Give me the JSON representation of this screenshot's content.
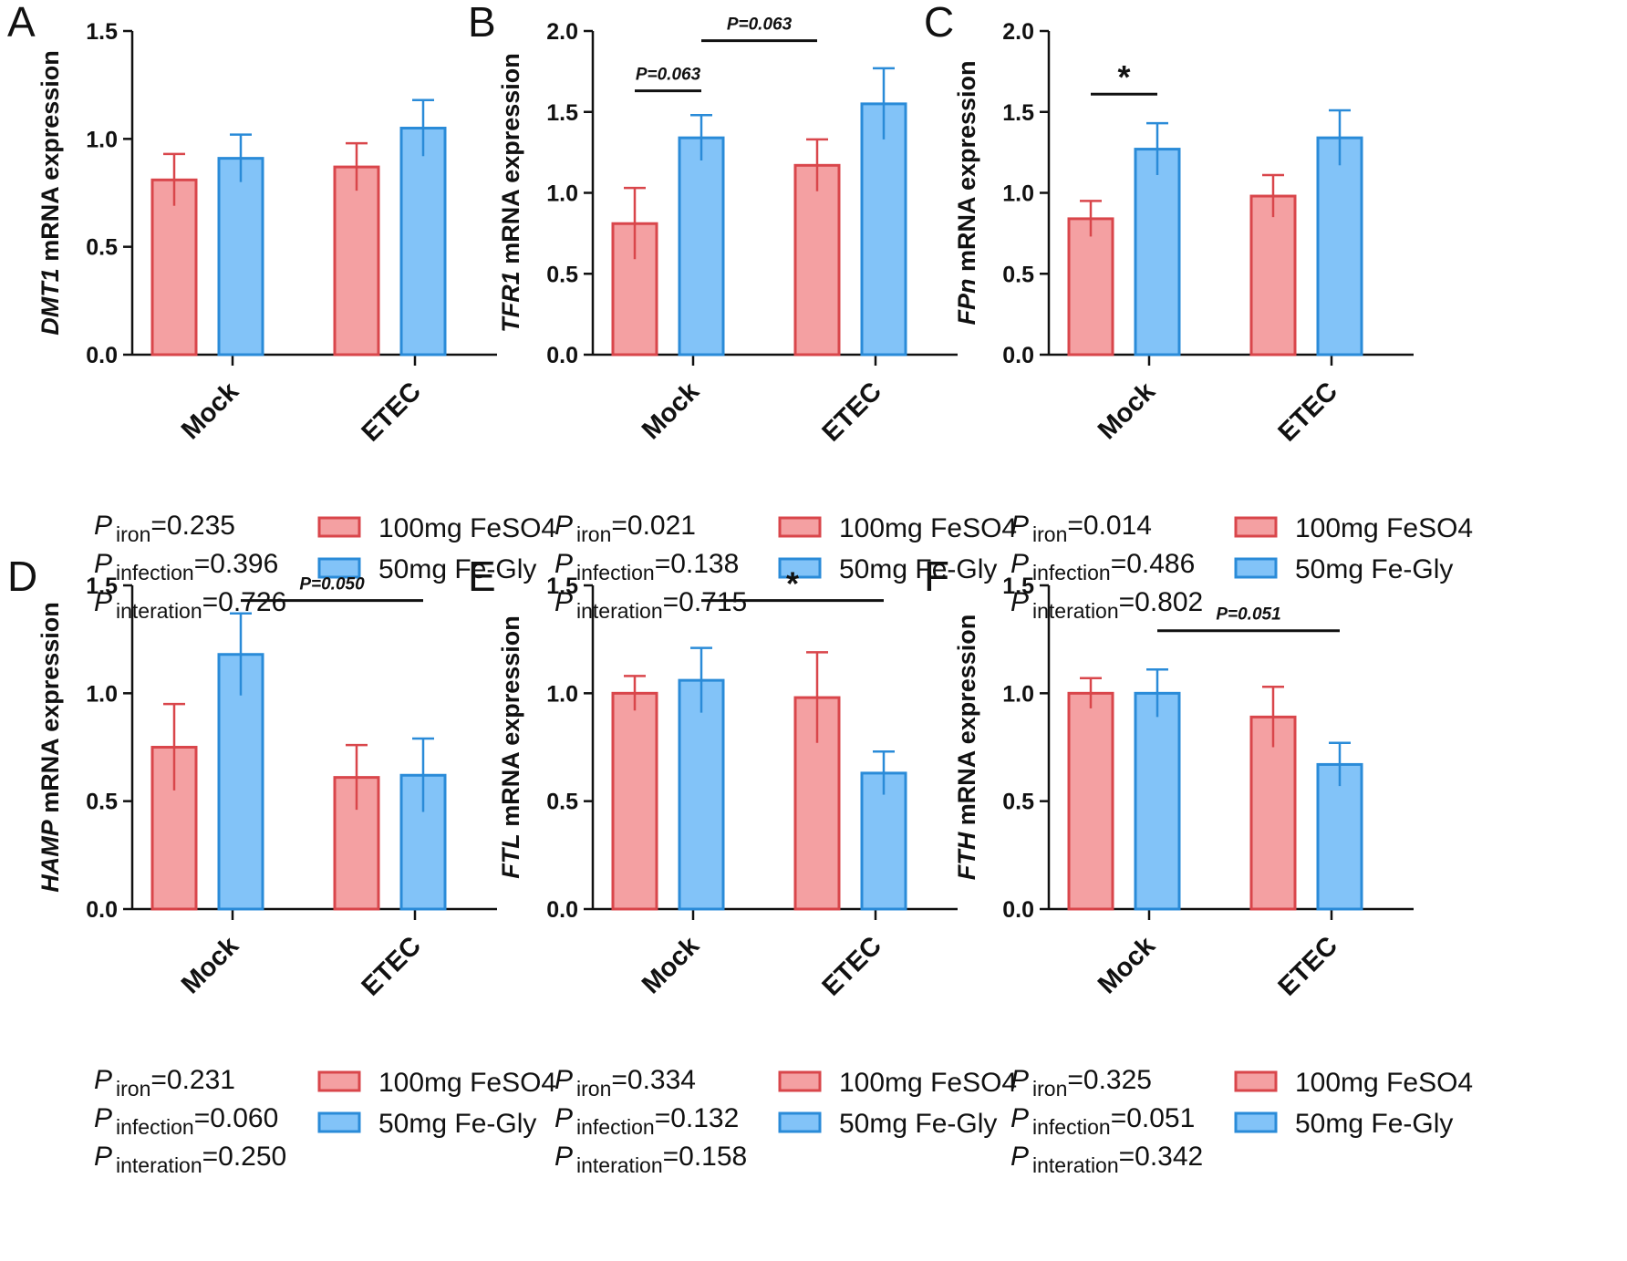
{
  "colors": {
    "series1_fill": "#F4A0A2",
    "series1_stroke": "#D9464B",
    "series2_fill": "#82C3F8",
    "series2_stroke": "#2A8BD8",
    "axis": "#111111"
  },
  "legend": {
    "series1": "100mg FeSO4",
    "series2": "50mg Fe-Gly"
  },
  "chart_data": [
    {
      "panel": "A",
      "type": "bar",
      "gene": "DMT1",
      "ylabel_suffix": " mRNA expression",
      "ylim": [
        0,
        1.5
      ],
      "yticks": [
        "0.0",
        "0.5",
        "1.0",
        "1.5"
      ],
      "categories": [
        "Mock",
        "ETEC"
      ],
      "series": [
        {
          "name": "100mg FeSO4",
          "values": [
            0.81,
            0.87
          ],
          "err": [
            0.12,
            0.11
          ]
        },
        {
          "name": "50mg Fe-Gly",
          "values": [
            0.91,
            1.05
          ],
          "err": [
            0.11,
            0.13
          ]
        }
      ],
      "annotations": [],
      "stats": {
        "iron": {
          "label": "iron",
          "value": "=0.235"
        },
        "infection": {
          "label": "infection",
          "value": "=0.396"
        },
        "interaction": {
          "label": "interation",
          "value": "=0.726"
        }
      }
    },
    {
      "panel": "B",
      "type": "bar",
      "gene": "TFR1",
      "ylabel_suffix": " mRNA expression",
      "ylim": [
        0,
        2.0
      ],
      "yticks": [
        "0.0",
        "0.5",
        "1.0",
        "1.5",
        "2.0"
      ],
      "categories": [
        "Mock",
        "ETEC"
      ],
      "series": [
        {
          "name": "100mg FeSO4",
          "values": [
            0.81,
            1.17
          ],
          "err": [
            0.22,
            0.16
          ]
        },
        {
          "name": "50mg Fe-Gly",
          "values": [
            1.34,
            1.55
          ],
          "err": [
            0.14,
            0.22
          ]
        }
      ],
      "annotations": [
        {
          "from": [
            0,
            1
          ],
          "to": [
            1,
            0
          ],
          "level": 1.94,
          "text": "P=0.063",
          "kind": "p"
        },
        {
          "from": [
            0,
            0
          ],
          "to": [
            0,
            1
          ],
          "level": 1.63,
          "text": "P=0.063",
          "kind": "p"
        }
      ],
      "stats": {
        "iron": {
          "label": "iron",
          "value": "=0.021"
        },
        "infection": {
          "label": "infection",
          "value": "=0.138"
        },
        "interaction": {
          "label": "interation",
          "value": "=0.715"
        }
      }
    },
    {
      "panel": "C",
      "type": "bar",
      "gene": "FPn",
      "ylabel_suffix": " mRNA expression",
      "ylim": [
        0,
        2.0
      ],
      "yticks": [
        "0.0",
        "0.5",
        "1.0",
        "1.5",
        "2.0"
      ],
      "categories": [
        "Mock",
        "ETEC"
      ],
      "series": [
        {
          "name": "100mg FeSO4",
          "values": [
            0.84,
            0.98
          ],
          "err": [
            0.11,
            0.13
          ]
        },
        {
          "name": "50mg Fe-Gly",
          "values": [
            1.27,
            1.34
          ],
          "err": [
            0.16,
            0.17
          ]
        }
      ],
      "annotations": [
        {
          "from": [
            0,
            0
          ],
          "to": [
            0,
            1
          ],
          "level": 1.61,
          "text": "*",
          "kind": "star"
        }
      ],
      "stats": {
        "iron": {
          "label": "iron",
          "value": "=0.014"
        },
        "infection": {
          "label": "infection",
          "value": "=0.486"
        },
        "interaction": {
          "label": "interation",
          "value": "=0.802"
        }
      }
    },
    {
      "panel": "D",
      "type": "bar",
      "gene": "HAMP",
      "ylabel_suffix": " mRNA expression",
      "ylim": [
        0,
        1.5
      ],
      "yticks": [
        "0.0",
        "0.5",
        "1.0",
        "1.5"
      ],
      "categories": [
        "Mock",
        "ETEC"
      ],
      "series": [
        {
          "name": "100mg FeSO4",
          "values": [
            0.75,
            0.61
          ],
          "err": [
            0.2,
            0.15
          ]
        },
        {
          "name": "50mg Fe-Gly",
          "values": [
            1.18,
            0.62
          ],
          "err": [
            0.19,
            0.17
          ]
        }
      ],
      "annotations": [
        {
          "from": [
            0,
            1
          ],
          "to": [
            1,
            1
          ],
          "level": 1.43,
          "text": "P=0.050",
          "kind": "p"
        }
      ],
      "stats": {
        "iron": {
          "label": "iron",
          "value": "=0.231"
        },
        "infection": {
          "label": "infection",
          "value": "=0.060"
        },
        "interaction": {
          "label": "interation",
          "value": "=0.250"
        }
      }
    },
    {
      "panel": "E",
      "type": "bar",
      "gene": "FTL",
      "ylabel_suffix": " mRNA expression",
      "ylim": [
        0,
        1.5
      ],
      "yticks": [
        "0.0",
        "0.5",
        "1.0",
        "1.5"
      ],
      "categories": [
        "Mock",
        "ETEC"
      ],
      "series": [
        {
          "name": "100mg FeSO4",
          "values": [
            1.0,
            0.98
          ],
          "err": [
            0.08,
            0.21
          ]
        },
        {
          "name": "50mg Fe-Gly",
          "values": [
            1.06,
            0.63
          ],
          "err": [
            0.15,
            0.1
          ]
        }
      ],
      "annotations": [
        {
          "from": [
            0,
            1
          ],
          "to": [
            1,
            1
          ],
          "level": 1.43,
          "text": "*",
          "kind": "star"
        }
      ],
      "stats": {
        "iron": {
          "label": "iron",
          "value": "=0.334"
        },
        "infection": {
          "label": "infection",
          "value": "=0.132"
        },
        "interaction": {
          "label": "interation",
          "value": "=0.158"
        }
      }
    },
    {
      "panel": "F",
      "type": "bar",
      "gene": "FTH",
      "ylabel_suffix": " mRNA expression",
      "ylim": [
        0,
        1.5
      ],
      "yticks": [
        "0.0",
        "0.5",
        "1.0",
        "1.5"
      ],
      "categories": [
        "Mock",
        "ETEC"
      ],
      "series": [
        {
          "name": "100mg FeSO4",
          "values": [
            1.0,
            0.89
          ],
          "err": [
            0.07,
            0.14
          ]
        },
        {
          "name": "50mg Fe-Gly",
          "values": [
            1.0,
            0.67
          ],
          "err": [
            0.11,
            0.1
          ]
        }
      ],
      "annotations": [
        {
          "from": [
            0,
            1
          ],
          "to": [
            1,
            1
          ],
          "level": 1.29,
          "text": "P=0.051",
          "kind": "p"
        }
      ],
      "stats": {
        "iron": {
          "label": "iron",
          "value": "=0.325"
        },
        "infection": {
          "label": "infection",
          "value": "=0.051"
        },
        "interaction": {
          "label": "interation",
          "value": "=0.342"
        }
      }
    }
  ]
}
